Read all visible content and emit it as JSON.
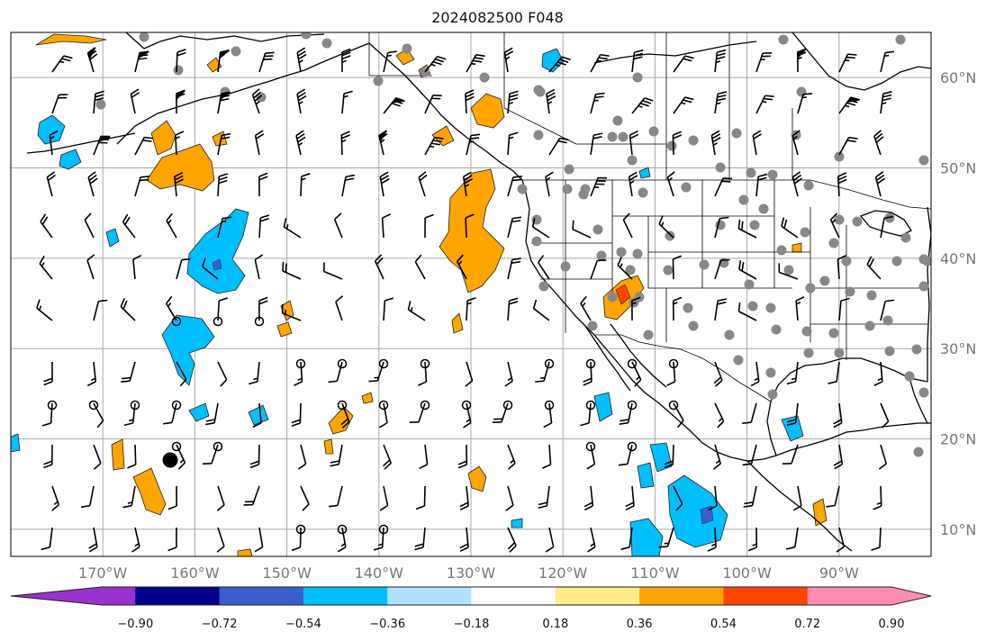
{
  "title": "2024082500 F048",
  "map": {
    "projection": "Plate Carree",
    "lon_range": [
      -180,
      -80
    ],
    "lat_range": [
      7,
      65
    ],
    "longitude_labels": [
      "170°W",
      "160°W",
      "150°W",
      "140°W",
      "130°W",
      "120°W",
      "110°W",
      "100°W",
      "90°W"
    ],
    "latitude_labels": [
      "60°N",
      "50°N",
      "40°N",
      "30°N",
      "20°N",
      "10°N"
    ],
    "gridlines": true,
    "grid_color": "#a8a8a8",
    "land_outline_color": "#000000",
    "station_marker": "gray-circle",
    "station_color": "#888888",
    "calm_marker": "open-circle",
    "wind_symbol": "barb"
  },
  "colorbar": {
    "orientation": "horizontal",
    "extend": "both",
    "ticks": [
      "−0.90",
      "−0.72",
      "−0.54",
      "−0.36",
      "−0.18",
      "0.18",
      "0.36",
      "0.54",
      "0.72",
      "0.90"
    ],
    "colors": [
      "#9932cc",
      "#00008b",
      "#3a5fcd",
      "#00bfff",
      "#b0e2ff",
      "#ffffff",
      "#ffec8b",
      "#ffa500",
      "#ff4500",
      "#b22222",
      "#ff8cb4"
    ]
  }
}
